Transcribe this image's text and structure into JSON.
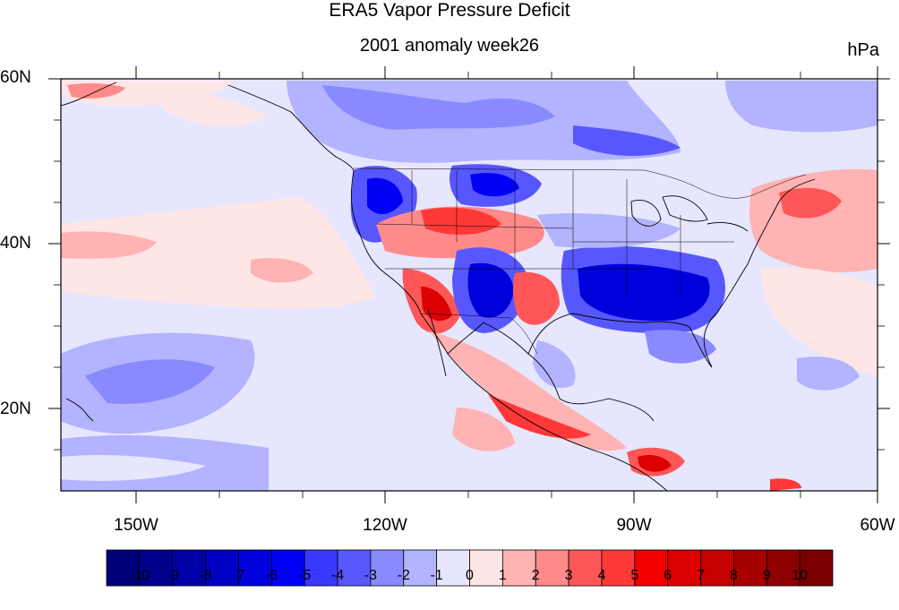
{
  "title": "ERA5 Vapor Pressure Deficit",
  "subtitle": "2001 anomaly week26",
  "units": "hPa",
  "map": {
    "region": "North America / Eastern Pacific",
    "lon_range": [
      -160,
      -60
    ],
    "lat_range": [
      10,
      60
    ],
    "lat_labels": [
      "60N",
      "40N",
      "20N"
    ],
    "lon_labels": [
      "150W",
      "120W",
      "90W",
      "60W"
    ]
  },
  "colorbar": {
    "labels": [
      "-10",
      "-9",
      "-8",
      "-7",
      "-6",
      "-5",
      "-4",
      "-3",
      "-2",
      "-1",
      "0",
      "1",
      "2",
      "3",
      "4",
      "5",
      "6",
      "7",
      "8",
      "9",
      "10"
    ],
    "colors": [
      "#00007a",
      "#00008f",
      "#0000a8",
      "#0000c4",
      "#0000dc",
      "#0000f4",
      "#3838ff",
      "#5757ff",
      "#8a8aff",
      "#b3b3ff",
      "#e6e6ff",
      "#ffe6e6",
      "#ffb3b3",
      "#ff8a8a",
      "#ff5757",
      "#ff3838",
      "#f40000",
      "#dc0000",
      "#c40000",
      "#a80000",
      "#8f0000",
      "#7a0000"
    ]
  }
}
